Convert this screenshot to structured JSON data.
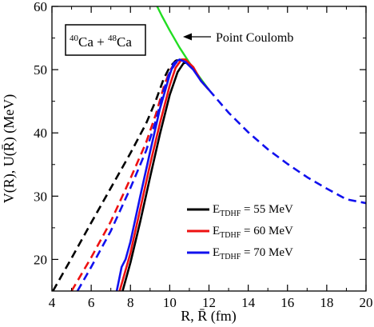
{
  "chart_data": {
    "type": "line",
    "xlabel": "R, R̄ (fm)",
    "ylabel": "V(R), U(R̄) (MeV)",
    "xlim": [
      4,
      20
    ],
    "ylim": [
      15,
      60
    ],
    "xticks": [
      4,
      6,
      8,
      10,
      12,
      14,
      16,
      18,
      20
    ],
    "yticks": [
      20,
      30,
      40,
      50,
      60
    ],
    "system_label": {
      "a_mass": "40",
      "a_elem": "Ca",
      "plus": " + ",
      "b_mass": "48",
      "b_elem": "Ca"
    },
    "annotation": "Point Coulomb",
    "legend": {
      "placement": "lower-right",
      "entries": [
        {
          "main": "E",
          "sub": "TDHF",
          "rest": " = 55 MeV",
          "color": "#000000"
        },
        {
          "main": "E",
          "sub": "TDHF",
          "rest": " = 60 MeV",
          "color": "#ee1111"
        },
        {
          "main": "E",
          "sub": "TDHF",
          "rest": " = 70 MeV",
          "color": "#1111ee"
        }
      ]
    },
    "series": [
      {
        "key": "coulomb",
        "color": "#22dd22",
        "dash": false,
        "x": [
          9.36,
          9.6,
          10.0,
          10.5,
          11.0,
          11.5,
          12.0
        ],
        "y": [
          60.0,
          58.5,
          56.2,
          53.5,
          51.1,
          48.9,
          46.8
        ]
      },
      {
        "key": "black-dashed",
        "color": "#000000",
        "dash": true,
        "x": [
          4.05,
          5.0,
          6.0,
          7.0,
          8.0,
          8.8,
          9.3,
          9.7,
          10.0,
          10.3,
          10.5
        ],
        "y": [
          15.0,
          20.2,
          25.8,
          31.3,
          36.8,
          41.5,
          45.2,
          48.6,
          50.4,
          51.4,
          51.6
        ]
      },
      {
        "key": "red-dashed",
        "color": "#ee1111",
        "dash": true,
        "x": [
          5.0,
          6.0,
          7.0,
          8.0,
          8.8,
          9.3,
          9.7,
          10.0,
          10.3,
          10.55
        ],
        "y": [
          15.0,
          20.3,
          26.0,
          32.8,
          38.5,
          43.0,
          47.3,
          49.8,
          51.2,
          51.6
        ]
      },
      {
        "key": "blue-dashed",
        "color": "#1111ee",
        "dash": true,
        "x": [
          5.3,
          6.0,
          7.0,
          8.0,
          8.8,
          9.3,
          9.7,
          10.0,
          10.3,
          10.5
        ],
        "y": [
          15.0,
          18.8,
          24.5,
          31.3,
          37.2,
          42.0,
          46.8,
          49.6,
          51.0,
          51.6
        ]
      },
      {
        "key": "black-solid",
        "color": "#000000",
        "dash": false,
        "x": [
          7.6,
          8.0,
          8.5,
          9.0,
          9.5,
          10.0,
          10.4,
          10.7,
          10.9,
          11.2,
          11.6,
          12.0
        ],
        "y": [
          15.0,
          19.5,
          26.0,
          33.0,
          39.8,
          46.0,
          49.6,
          51.0,
          51.2,
          50.2,
          48.2,
          46.8
        ]
      },
      {
        "key": "red-solid",
        "color": "#ee1111",
        "dash": false,
        "x": [
          7.45,
          8.0,
          8.5,
          9.0,
          9.5,
          10.0,
          10.3,
          10.6,
          10.8,
          11.2,
          11.6,
          12.0
        ],
        "y": [
          15.0,
          21.0,
          28.0,
          35.0,
          41.5,
          47.5,
          50.3,
          51.6,
          51.6,
          50.4,
          48.2,
          46.8
        ]
      },
      {
        "key": "blue-solid",
        "color": "#1111ee",
        "dash": false,
        "x": [
          7.3,
          7.4,
          7.55,
          7.75,
          8.0,
          8.5,
          9.0,
          9.5,
          10.0,
          10.2,
          10.5,
          10.8,
          11.2,
          11.6,
          12.0
        ],
        "y": [
          15.0,
          16.5,
          18.8,
          20.0,
          22.8,
          30.0,
          37.0,
          43.8,
          49.2,
          51.0,
          51.6,
          51.2,
          50.0,
          48.2,
          46.8
        ]
      },
      {
        "key": "coulomb-tail",
        "color": "#1111ee",
        "dash": true,
        "x": [
          12.0,
          13.0,
          14.0,
          15.0,
          16.0,
          17.0,
          18.0,
          19.0,
          20.0
        ],
        "y": [
          46.8,
          43.2,
          40.1,
          37.4,
          35.1,
          33.0,
          31.2,
          29.5,
          28.9
        ]
      }
    ]
  }
}
